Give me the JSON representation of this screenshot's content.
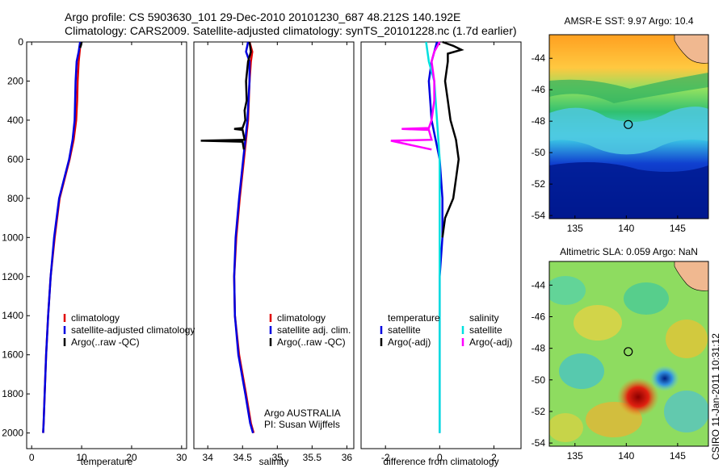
{
  "header": {
    "line1": "Argo profile: CS 5903630_101 29-Dec-2010 20101230_687 48.212S 140.192E",
    "line2": "Climatology: CARS2009. Satellite-adjusted climatology: synTS_20101228.nc (1.7d earlier)"
  },
  "side_label": "CSIRO 11-Jan-2011 10:31:12",
  "colors": {
    "climatology": "#e00000",
    "satellite": "#0000e0",
    "argo": "#000000",
    "salinity_satellite": "#00e0e0",
    "salinity_argo": "#ff00ff"
  },
  "chart_data": [
    {
      "type": "line",
      "xlabel": "temperature",
      "ylabel": "",
      "xlim": [
        -1,
        31
      ],
      "ylim": [
        2080,
        0
      ],
      "xticks": [
        0,
        10,
        20,
        30
      ],
      "yticks": [
        0,
        200,
        400,
        600,
        800,
        1000,
        1200,
        1400,
        1600,
        1800,
        2000
      ],
      "legend_position": "lower-right",
      "series": [
        {
          "name": "climatology",
          "color": "#e00000",
          "x": [
            9.8,
            9.6,
            9.4,
            9.2,
            9.1,
            8.9,
            8.4,
            7.6,
            6.6,
            5.6,
            4.6,
            3.8,
            3.3,
            2.9,
            2.6,
            2.4,
            2.3
          ],
          "y": [
            0,
            50,
            100,
            200,
            300,
            400,
            500,
            600,
            700,
            800,
            1000,
            1200,
            1400,
            1600,
            1800,
            1950,
            2000
          ]
        },
        {
          "name": "satellite-adjusted climatology",
          "color": "#0000e0",
          "x": [
            9.7,
            9.4,
            9.0,
            8.8,
            8.7,
            8.6,
            8.2,
            7.5,
            6.5,
            5.5,
            4.5,
            3.8,
            3.3,
            2.9,
            2.6,
            2.4,
            2.3
          ],
          "y": [
            0,
            50,
            100,
            200,
            300,
            400,
            500,
            600,
            700,
            800,
            1000,
            1200,
            1400,
            1600,
            1800,
            1950,
            2000
          ]
        },
        {
          "name": "Argo(..raw -QC)",
          "color": "#000000",
          "x": [
            10.0,
            9.9,
            9.7
          ],
          "y": [
            0,
            15,
            30
          ]
        }
      ]
    },
    {
      "type": "line",
      "xlabel": "salinity",
      "ylabel": "",
      "xlim": [
        33.8,
        36.1
      ],
      "ylim": [
        2080,
        0
      ],
      "xticks": [
        34,
        34.5,
        35,
        35.5,
        36
      ],
      "yticks": [],
      "legend_position": "lower-right",
      "annotations": [
        "Argo AUSTRALIA",
        "PI: Susan Wijffels"
      ],
      "series": [
        {
          "name": "climatology",
          "color": "#e00000",
          "x": [
            34.6,
            34.64,
            34.62,
            34.6,
            34.58,
            34.52,
            34.46,
            34.41,
            34.38,
            34.39,
            34.45,
            34.55,
            34.62,
            34.66
          ],
          "y": [
            0,
            50,
            100,
            200,
            400,
            600,
            800,
            1000,
            1200,
            1400,
            1600,
            1800,
            1950,
            2000
          ]
        },
        {
          "name": "satellite adj. clim.",
          "color": "#0000e0",
          "x": [
            34.58,
            34.55,
            34.6,
            34.6,
            34.57,
            34.51,
            34.45,
            34.4,
            34.38,
            34.39,
            34.44,
            34.54,
            34.61,
            34.65
          ],
          "y": [
            0,
            50,
            100,
            200,
            400,
            600,
            800,
            1000,
            1200,
            1400,
            1600,
            1800,
            1950,
            2000
          ]
        },
        {
          "name": "Argo(..raw -QC)",
          "color": "#000000",
          "x": [
            34.6,
            34.62,
            34.58,
            34.55,
            34.56,
            34.53,
            34.54,
            34.5,
            34.38,
            34.5,
            34.53,
            33.9,
            34.5,
            34.52
          ],
          "y": [
            0,
            50,
            100,
            200,
            300,
            350,
            400,
            440,
            445,
            450,
            500,
            505,
            510,
            550
          ]
        }
      ]
    },
    {
      "type": "line",
      "xlabel": "difference from climatology",
      "ylabel": "",
      "xlim": [
        -2.9,
        3.0
      ],
      "ylim": [
        2080,
        0
      ],
      "xticks": [
        -2,
        0,
        2
      ],
      "yticks": [],
      "legend_position": "lower-center",
      "legend_titles": [
        "temperature",
        "salinity"
      ],
      "series": [
        {
          "name": "temperature satellite",
          "color": "#0000e0",
          "x": [
            -0.1,
            -0.3,
            -0.4,
            -0.3,
            0.0,
            0.1,
            0.1,
            0.0,
            0.0,
            0.0,
            0.0,
            0.0
          ],
          "y": [
            0,
            100,
            200,
            400,
            600,
            800,
            1000,
            1200,
            1400,
            1600,
            1800,
            2000
          ]
        },
        {
          "name": "temperature Argo(-adj)",
          "color": "#000000",
          "x": [
            0.1,
            0.5,
            0.8,
            0.3,
            0.3,
            0.2,
            0.3,
            0.4,
            0.6,
            0.7,
            0.6,
            0.5,
            0.2,
            0.1
          ],
          "y": [
            0,
            20,
            40,
            60,
            100,
            200,
            300,
            400,
            500,
            600,
            700,
            800,
            900,
            1000
          ]
        },
        {
          "name": "salinity satellite",
          "color": "#00e0e0",
          "x": [
            -0.5,
            -0.4,
            -0.2,
            -0.1,
            0.0,
            0.0,
            0.0,
            0.0,
            0.0,
            0.0,
            0.0
          ],
          "y": [
            0,
            100,
            200,
            400,
            600,
            800,
            1000,
            1200,
            1400,
            1600,
            2000
          ]
        },
        {
          "name": "salinity Argo(-adj)",
          "color": "#ff00ff",
          "x": [
            0.0,
            -0.2,
            -0.3,
            -0.2,
            -0.2,
            -0.3,
            -0.4,
            -1.4,
            -0.4,
            -0.3,
            -1.8,
            -0.3
          ],
          "y": [
            0,
            50,
            100,
            200,
            300,
            400,
            440,
            445,
            450,
            500,
            505,
            550
          ]
        }
      ]
    },
    {
      "type": "heatmap",
      "title": "AMSR-E SST: 9.97 Argo: 10.4",
      "xlim": [
        132.5,
        148
      ],
      "ylim": [
        -54.2,
        -42.5
      ],
      "xticks": [
        135,
        140,
        145
      ],
      "yticks": [
        -44,
        -46,
        -48,
        -50,
        -52,
        -54
      ],
      "marker": {
        "x": 140.192,
        "y": -48.212
      }
    },
    {
      "type": "heatmap",
      "title": "Altimetric SLA: 0.059 Argo: NaN",
      "xlim": [
        132.5,
        148
      ],
      "ylim": [
        -54.2,
        -42.5
      ],
      "xticks": [
        135,
        140,
        145
      ],
      "yticks": [
        -44,
        -46,
        -48,
        -50,
        -52,
        -54
      ],
      "marker": {
        "x": 140.192,
        "y": -48.212
      }
    }
  ]
}
